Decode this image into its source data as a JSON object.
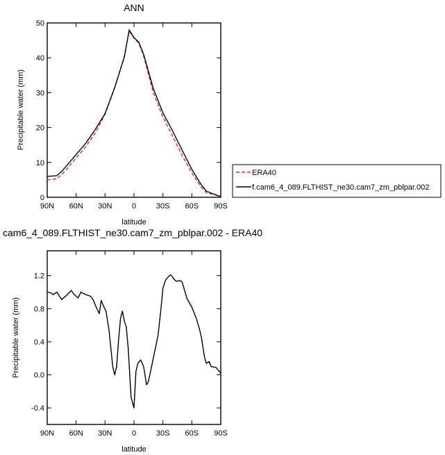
{
  "chart_data": [
    {
      "type": "line",
      "title": "ANN",
      "xlabel": "latitude",
      "ylabel": "Precipitable water (mm)",
      "xlim": [
        90,
        -90
      ],
      "ylim": [
        0,
        50
      ],
      "xticks": [
        90,
        60,
        30,
        0,
        -30,
        -60,
        -90
      ],
      "xtick_labels": [
        "90N",
        "60N",
        "30N",
        "0",
        "30S",
        "60S",
        "90S"
      ],
      "yticks": [
        0,
        10,
        20,
        30,
        40,
        50
      ],
      "ytick_labels": [
        "0",
        "10",
        "20",
        "30",
        "40",
        "50"
      ],
      "legend_position": "right",
      "series": [
        {
          "name": "ERA40",
          "color": "#d62728",
          "dash": "dashed",
          "x": [
            90,
            80,
            75,
            70,
            60,
            50,
            40,
            30,
            20,
            10,
            5,
            0,
            -5,
            -10,
            -20,
            -30,
            -40,
            -50,
            -60,
            -70,
            -75,
            -80,
            -85,
            -90
          ],
          "y": [
            5.0,
            5.3,
            6.5,
            8.0,
            11.3,
            14.5,
            18.5,
            23.8,
            31.3,
            40.5,
            47.6,
            45.6,
            44.2,
            40.5,
            30.0,
            23.0,
            17.5,
            12.0,
            7.0,
            2.8,
            1.3,
            1.0,
            0.6,
            0.2
          ]
        },
        {
          "name": "f.cam6_4_089.FLTHIST_ne30.cam7_zm_pblpar.002",
          "color": "#000000",
          "dash": "solid",
          "x": [
            90,
            80,
            75,
            70,
            60,
            50,
            40,
            30,
            20,
            10,
            5,
            0,
            -5,
            -10,
            -20,
            -30,
            -40,
            -50,
            -60,
            -70,
            -75,
            -80,
            -85,
            -90
          ],
          "y": [
            6.0,
            6.2,
            7.4,
            9.0,
            12.3,
            15.5,
            19.5,
            24.0,
            31.5,
            40.2,
            48.0,
            45.8,
            44.5,
            41.0,
            31.2,
            24.2,
            19.0,
            13.5,
            8.0,
            3.5,
            1.8,
            1.2,
            0.7,
            0.2
          ]
        }
      ]
    },
    {
      "type": "line",
      "title": "cam6_4_089.FLTHIST_ne30.cam7_zm_pblpar.002 - ERA40",
      "xlabel": "latitude",
      "ylabel": "Precipitable water (mm)",
      "xlim": [
        90,
        -90
      ],
      "ylim": [
        -0.6,
        1.5
      ],
      "xticks": [
        90,
        60,
        30,
        0,
        -30,
        -60,
        -90
      ],
      "xtick_labels": [
        "90N",
        "60N",
        "30N",
        "0",
        "30S",
        "60S",
        "90S"
      ],
      "yticks": [
        -0.4,
        0.0,
        0.4,
        0.8,
        1.2
      ],
      "ytick_labels": [
        "-0.4",
        "0.0",
        "0.4",
        "0.8",
        "1.2"
      ],
      "series": [
        {
          "color": "#000000",
          "dash": "solid",
          "x": [
            90,
            86,
            84,
            80,
            75,
            70,
            65,
            62,
            58,
            55,
            50,
            45,
            42,
            40,
            36,
            34,
            32,
            29,
            26,
            22,
            20,
            18,
            16,
            14,
            12,
            10,
            8,
            6,
            3,
            0,
            -2,
            -4,
            -7,
            -10,
            -13,
            -15,
            -17,
            -20,
            -25,
            -28,
            -30,
            -33,
            -36,
            -38,
            -40,
            -42,
            -44,
            -48,
            -50,
            -55,
            -60,
            -65,
            -68,
            -70,
            -73,
            -75,
            -78,
            -80,
            -85,
            -90
          ],
          "y": [
            1.0,
            0.99,
            0.97,
            1.0,
            0.91,
            0.96,
            1.02,
            0.97,
            0.93,
            1.0,
            0.97,
            0.95,
            0.9,
            0.84,
            0.74,
            0.9,
            0.84,
            0.77,
            0.55,
            0.1,
            0.0,
            0.1,
            0.42,
            0.68,
            0.77,
            0.65,
            0.58,
            0.32,
            -0.27,
            -0.4,
            0.04,
            0.14,
            0.18,
            0.1,
            -0.12,
            -0.08,
            0.03,
            0.2,
            0.48,
            0.8,
            1.05,
            1.15,
            1.19,
            1.21,
            1.18,
            1.15,
            1.13,
            1.14,
            1.12,
            0.92,
            0.82,
            0.67,
            0.55,
            0.45,
            0.22,
            0.14,
            0.16,
            0.1,
            0.09,
            0.02
          ]
        }
      ]
    }
  ]
}
